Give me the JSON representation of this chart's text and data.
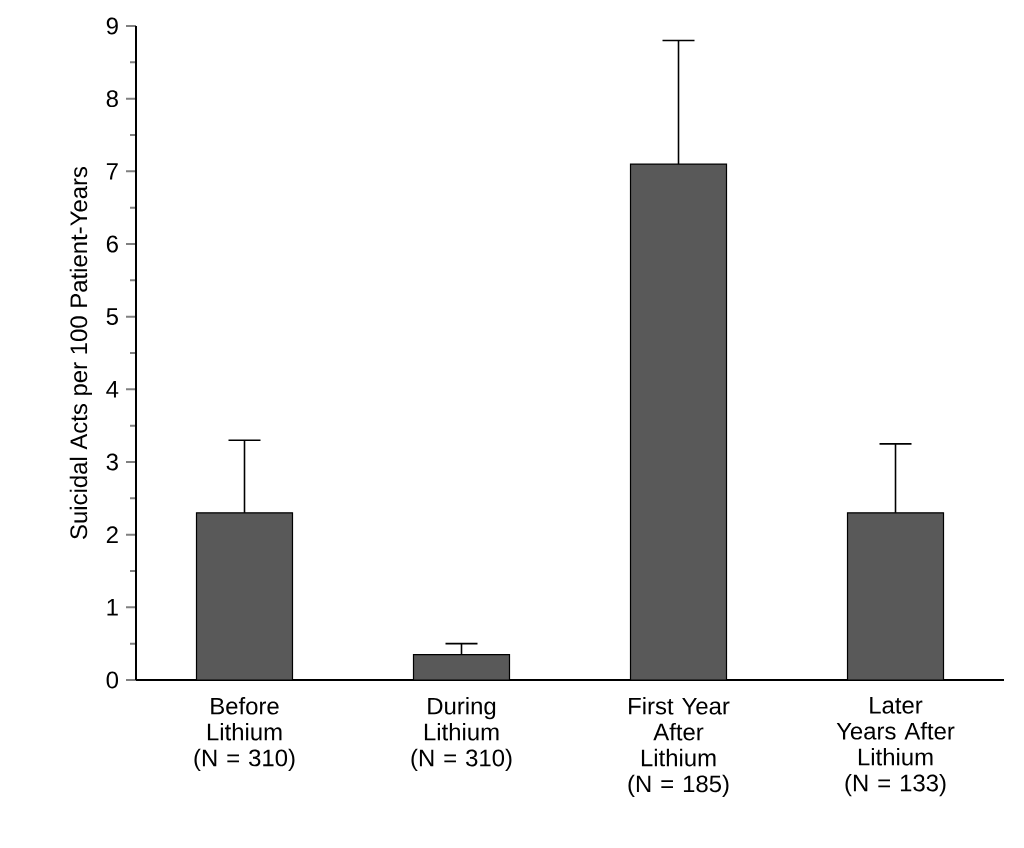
{
  "chart_data": {
    "type": "bar",
    "ylabel": "Suicidal Acts per 100 Patient-Years",
    "categories": [
      "Before Lithium (N = 310)",
      "During Lithium (N = 310)",
      "First Year After Lithium (N = 185)",
      "Later Years After Lithium (N = 133)"
    ],
    "values": [
      2.3,
      0.35,
      7.1,
      2.3
    ],
    "errors": [
      [
        2.3,
        3.3
      ],
      [
        0.35,
        0.5
      ],
      [
        7.1,
        8.8
      ],
      [
        2.3,
        3.25
      ]
    ],
    "color": "#595959",
    "ylim": [
      0,
      9
    ],
    "yticks": [
      0,
      1,
      2,
      3,
      4,
      5,
      6,
      7,
      8,
      9
    ],
    "grid": false
  }
}
